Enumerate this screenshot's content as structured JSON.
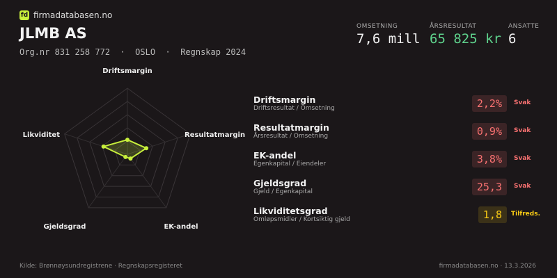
{
  "brand": {
    "logo": "fd",
    "name": "firmadatabasen.no"
  },
  "company": {
    "name": "JLMB AS",
    "meta": "Org.nr 831 258 772  ·  OSLO  ·  Regnskap 2024"
  },
  "stats": [
    {
      "label": "OMSETNING",
      "value": "7,6 mill",
      "color": "#f2f2f2"
    },
    {
      "label": "ÅRSRESULTAT",
      "value": "65 825 kr",
      "color": "#5fd38d"
    },
    {
      "label": "ANSATTE",
      "value": "6",
      "color": "#f2f2f2"
    }
  ],
  "chart_data": {
    "type": "radar",
    "axes": [
      "Driftsmargin",
      "Resultatmargin",
      "EK-andel",
      "Gjeldsgrad",
      "Likviditet"
    ],
    "values": [
      22,
      30,
      8,
      5,
      38
    ],
    "color": "#c8f03c",
    "rlim": [
      0,
      100
    ],
    "rticks": [
      20,
      40,
      60,
      80,
      100
    ]
  },
  "metrics": [
    {
      "name": "Driftsmargin",
      "formula": "Driftsresultat / Omsetning",
      "value": "2,2%",
      "rating": "Svak",
      "color": "#f87171"
    },
    {
      "name": "Resultatmargin",
      "formula": "Årsresultat / Omsetning",
      "value": "0,9%",
      "rating": "Svak",
      "color": "#f87171"
    },
    {
      "name": "EK-andel",
      "formula": "Egenkapital / Eiendeler",
      "value": "3,8%",
      "rating": "Svak",
      "color": "#f87171"
    },
    {
      "name": "Gjeldsgrad",
      "formula": "Gjeld / Egenkapital",
      "value": "25,3",
      "rating": "Svak",
      "color": "#f87171"
    },
    {
      "name": "Likviditetsgrad",
      "formula": "Omløpsmidler / Kortsiktig gjeld",
      "value": "1,8",
      "rating": "Tilfreds.",
      "color": "#facc15"
    }
  ],
  "footer": {
    "source": "Kilde: Brønnøysundregistrene · Regnskapsregisteret",
    "site": "firmadatabasen.no · 13.3.2026"
  }
}
